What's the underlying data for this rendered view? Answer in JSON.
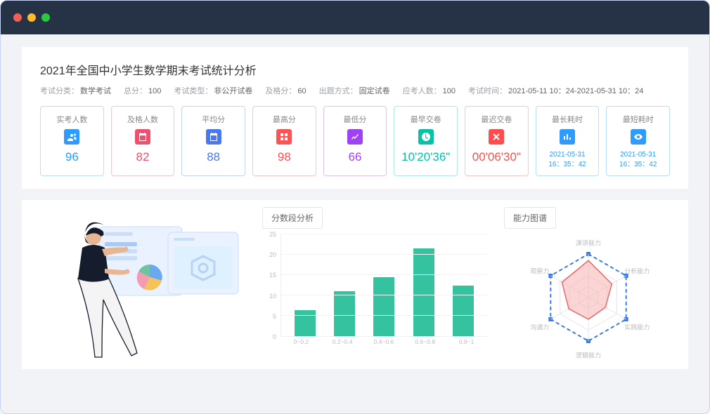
{
  "titlebar": {
    "dot_colors": [
      "#f25f58",
      "#fbbd2e",
      "#2ac840"
    ]
  },
  "header": {
    "title": "2021年全国中小学生数学期末考试统计分析"
  },
  "meta": [
    {
      "label": "考试分类：",
      "value": "数学考试"
    },
    {
      "label": "总分：",
      "value": "100"
    },
    {
      "label": "考试类型：",
      "value": "非公开试卷"
    },
    {
      "label": "及格分：",
      "value": "60"
    },
    {
      "label": "出题方式：",
      "value": "固定试卷"
    },
    {
      "label": "应考人数：",
      "value": "100"
    },
    {
      "label": "考试时间：",
      "value": "2021-05-11 10：24-2021-05-31 10：24"
    }
  ],
  "cards": [
    {
      "caption": "实考人数",
      "value": "96",
      "color": "#2e9bff",
      "icon": "people"
    },
    {
      "caption": "及格人数",
      "value": "82",
      "color": "#f0506e",
      "icon": "calendar"
    },
    {
      "caption": "平均分",
      "value": "88",
      "color": "#4a77f2",
      "icon": "calendar"
    },
    {
      "caption": "最高分",
      "value": "98",
      "color": "#ff5252",
      "icon": "squares"
    },
    {
      "caption": "最低分",
      "value": "66",
      "color": "#a042f4",
      "icon": "trend"
    },
    {
      "caption": "最早交卷",
      "value": "10'20'36\"",
      "color": "#06c3a8",
      "icon": "clock"
    },
    {
      "caption": "最迟交卷",
      "value": "00'06'30\"",
      "color": "#ff4d4d",
      "icon": "close"
    },
    {
      "caption": "最长耗时",
      "value": "2021-05-31\n16：35：42",
      "color": "#2e9bff",
      "icon": "bars",
      "small": true
    },
    {
      "caption": "最短耗时",
      "value": "2021-05-31\n16：35：42",
      "color": "#2e9bff",
      "icon": "eye",
      "small": true
    }
  ],
  "score_chart": {
    "title": "分数段分析",
    "type": "bar",
    "categories": [
      "0~0.2",
      "0.2~0.4",
      "0.4~0.6",
      "0.6~0.8",
      "0.8~1"
    ],
    "values": [
      6.3,
      11,
      14.5,
      21.5,
      12.5
    ],
    "y_ticks": [
      0,
      5,
      10,
      15,
      20,
      25
    ],
    "ylim_max": 25,
    "bar_color": "#35c29e",
    "grid_color": "#f3f3f3",
    "axis_color": "#eeeeee",
    "tick_fontsize": 9,
    "tick_color": "#bbbbbb"
  },
  "radar_chart": {
    "title": "能力图谱",
    "type": "radar",
    "axes": [
      "演讲能力",
      "分析能力",
      "实践能力",
      "逻辑能力",
      "沟通力",
      "观察力"
    ],
    "max": 100,
    "rings": 4,
    "values": [
      85,
      62,
      45,
      50,
      52,
      70
    ],
    "axis_line_color": "#3a7be0",
    "axis_line_dash": true,
    "vertex_marker_color": "#3a7be0",
    "vertex_marker_size": 6,
    "grid_color": "#e2e6ef",
    "data_fill": "#f7b0b0",
    "data_fill_opacity": 0.55,
    "data_stroke": "#e66a6a",
    "label_color": "#bbbbbb",
    "label_fontsize": 9
  },
  "illustration": {
    "bg_shapes_color": "#d5e5fb",
    "person_top_color": "#151c2c",
    "person_bottom_color": "#f3f3f3",
    "person_skin": "#e8b693",
    "pie_colors": [
      "#6fc3a0",
      "#f59ab0",
      "#6aa8f2",
      "#f6c25a"
    ]
  }
}
